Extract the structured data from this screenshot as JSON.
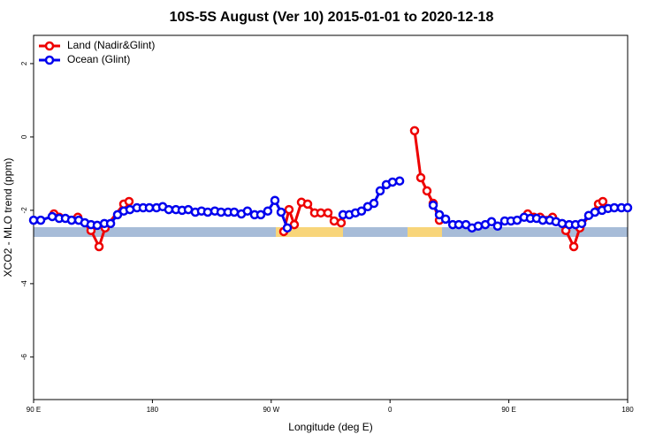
{
  "chart_data": {
    "type": "line",
    "title": "10S-5S August (Ver 10)   2015-01-01 to 2020-12-18",
    "x_label": "Longitude (deg E)",
    "y_label": "XCO2 - MLO trend (ppm)",
    "xlim": [
      90,
      540
    ],
    "xticks": [
      {
        "value": 90,
        "label": "90 E"
      },
      {
        "value": 180,
        "label": "180"
      },
      {
        "value": 270,
        "label": "90 W"
      },
      {
        "value": 360,
        "label": "0"
      },
      {
        "value": 450,
        "label": "90 E"
      },
      {
        "value": 540,
        "label": "180"
      }
    ],
    "ylim": [
      -7.16,
      2.77
    ],
    "yticks": [
      2,
      0,
      -2,
      -4,
      -6
    ],
    "legend": "top-left",
    "series": [
      {
        "name": "Land (Nadir&Glint)",
        "color": "#ee0000",
        "x": [
          105.4,
          109.4,
          123.5,
          133.5,
          139.6,
          144.2,
          158.3,
          162.3,
          null,
          279.5,
          283.5,
          287.5,
          292.9,
          297.6,
          302.9,
          307.6,
          313,
          317.7,
          323,
          null,
          378.6,
          383.3,
          388,
          392.7,
          397.4,
          null,
          464.3,
          469,
          473.7,
          483.1,
          493.2,
          499.2,
          503.8,
          517.9,
          521.2
        ],
        "values": [
          -2.1,
          -2.19,
          -2.19,
          -2.55,
          -2.99,
          -2.48,
          -1.83,
          -1.76,
          null,
          -2.58,
          -1.98,
          -2.39,
          -1.78,
          -1.83,
          -2.07,
          -2.07,
          -2.07,
          -2.29,
          -2.34,
          null,
          0.17,
          -1.11,
          -1.47,
          -1.81,
          -2.27,
          null,
          -2.1,
          -2.19,
          -2.19,
          -2.19,
          -2.55,
          -2.99,
          -2.48,
          -1.83,
          -1.76
        ]
      },
      {
        "name": "Ocean (Glint)",
        "color": "#0000ee",
        "x": [
          90,
          95.4,
          104.1,
          109.4,
          114.1,
          118.8,
          124.2,
          128.8,
          133.5,
          138.2,
          143.6,
          148.3,
          153.6,
          158.3,
          163,
          168.3,
          173,
          177.7,
          183.1,
          187.8,
          192.4,
          197.8,
          202.5,
          207.2,
          212.5,
          217.2,
          221.9,
          227.3,
          232,
          237.3,
          242,
          247.4,
          252,
          257.4,
          262.1,
          267.4,
          272.8,
          277.5,
          282.2,
          null,
          324.4,
          329.1,
          333.8,
          338.4,
          343.1,
          347.8,
          352.5,
          357.2,
          361.9,
          367.3,
          null,
          392.7,
          397.4,
          402.1,
          407.5,
          412.1,
          417.5,
          422.1,
          426.8,
          432.2,
          436.9,
          441.5,
          446.9,
          451.6,
          456.3,
          461.6,
          466.3,
          471,
          475.7,
          481,
          485.7,
          490.4,
          495.7,
          500.5,
          505.2,
          510.5,
          515.2,
          520.6,
          525.2,
          529.9,
          535.3,
          540
        ],
        "values": [
          -2.27,
          -2.27,
          -2.17,
          -2.22,
          -2.22,
          -2.27,
          -2.27,
          -2.34,
          -2.39,
          -2.41,
          -2.36,
          -2.36,
          -2.12,
          -2.02,
          -1.98,
          -1.93,
          -1.93,
          -1.93,
          -1.93,
          -1.9,
          -1.98,
          -1.98,
          -2.0,
          -1.98,
          -2.05,
          -2.02,
          -2.05,
          -2.02,
          -2.05,
          -2.05,
          -2.05,
          -2.1,
          -2.02,
          -2.12,
          -2.12,
          -2.02,
          -1.73,
          -2.05,
          -2.48,
          null,
          -2.12,
          -2.12,
          -2.07,
          -2.02,
          -1.9,
          -1.81,
          -1.47,
          -1.3,
          -1.23,
          -1.2,
          null,
          -1.86,
          -2.12,
          -2.24,
          -2.39,
          -2.39,
          -2.39,
          -2.48,
          -2.43,
          -2.39,
          -2.31,
          -2.43,
          -2.29,
          -2.29,
          -2.27,
          -2.19,
          -2.22,
          -2.22,
          -2.27,
          -2.27,
          -2.31,
          -2.36,
          -2.39,
          -2.39,
          -2.36,
          -2.14,
          -2.05,
          -2.0,
          -1.95,
          -1.93,
          -1.93,
          -1.93
        ]
      }
    ]
  }
}
